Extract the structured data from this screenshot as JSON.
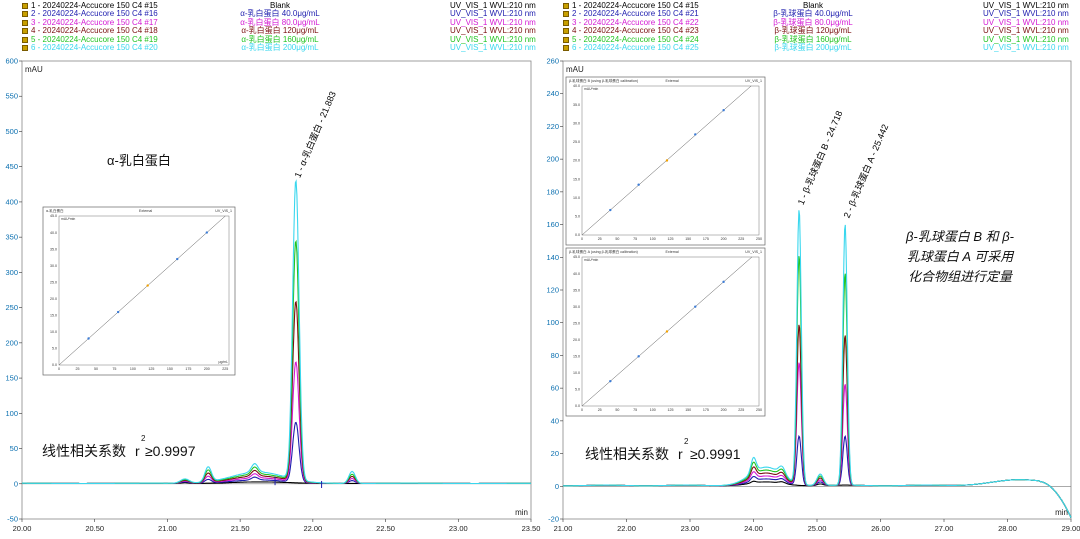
{
  "legend_left": [
    {
      "name": "1 - 20240224-Accucore 150 C4 #15",
      "sample": "Blank",
      "channel": "UV_VIS_1 WVL:210 nm",
      "color": "#000000"
    },
    {
      "name": "2 - 20240224-Accucore 150 C4 #16",
      "sample": "α-乳白蛋白 40.0μg/mL",
      "channel": "UV_VIS_1 WVL:210 nm",
      "color": "#1d1dae"
    },
    {
      "name": "3 - 20240224-Accucore 150 C4 #17",
      "sample": "α-乳白蛋白 80.0μg/mL",
      "channel": "UV_VIS_1 WVL:210 nm",
      "color": "#d41ad4"
    },
    {
      "name": "4 - 20240224-Accucore 150 C4 #18",
      "sample": "α-乳白蛋白 120μg/mL",
      "channel": "UV_VIS_1 WVL:210 nm",
      "color": "#7a1010"
    },
    {
      "name": "5 - 20240224-Accucore 150 C4 #19",
      "sample": "α-乳白蛋白 160μg/mL",
      "channel": "UV_VIS_1 WVL:210 nm",
      "color": "#22c422"
    },
    {
      "name": "6 - 20240224-Accucore 150 C4 #20",
      "sample": "α-乳白蛋白 200μg/mL",
      "channel": "UV_VIS_1 WVL:210 nm",
      "color": "#3ad7ee"
    }
  ],
  "legend_right": [
    {
      "name": "1 - 20240224-Accucore 150 C4 #15",
      "sample": "Blank",
      "channel": "UV_VIS_1 WVL:210 nm",
      "color": "#000000"
    },
    {
      "name": "2 - 20240224-Accucore 150 C4 #21",
      "sample": "β-乳球蛋白 40.0μg/mL",
      "channel": "UV_VIS_1 WVL:210 nm",
      "color": "#1d1dae"
    },
    {
      "name": "3 - 20240224-Accucore 150 C4 #22",
      "sample": "β-乳球蛋白 80.0μg/mL",
      "channel": "UV_VIS_1 WVL:210 nm",
      "color": "#d41ad4"
    },
    {
      "name": "4 - 20240224-Accucore 150 C4 #23",
      "sample": "β-乳球蛋白 120μg/mL",
      "channel": "UV_VIS_1 WVL:210 nm",
      "color": "#7a1010"
    },
    {
      "name": "5 - 20240224-Accucore 150 C4 #24",
      "sample": "β-乳球蛋白 160μg/mL",
      "channel": "UV_VIS_1 WVL:210 nm",
      "color": "#22c422"
    },
    {
      "name": "6 - 20240224-Accucore 150 C4 #25",
      "sample": "β-乳球蛋白 200μg/mL",
      "channel": "UV_VIS_1 WVL:210 nm",
      "color": "#3ad7ee"
    }
  ],
  "chart_data": [
    {
      "type": "line",
      "ylabel": "mAU",
      "xlabel": "min",
      "xlim": [
        20.0,
        23.5
      ],
      "ylim": [
        -50,
        600
      ],
      "xticks": [
        "20.00",
        "20.50",
        "21.00",
        "21.50",
        "22.00",
        "22.50",
        "23.00",
        "23.50"
      ],
      "yticks": [
        "-50",
        "0",
        "50",
        "100",
        "150",
        "200",
        "250",
        "300",
        "350",
        "400",
        "450",
        "500",
        "550",
        "600"
      ],
      "peaks": [
        {
          "label": "1 - α-乳白蛋白 - 21.883",
          "rt": 21.883
        }
      ],
      "peak_heights": [
        0,
        85,
        170,
        255,
        340,
        425
      ],
      "minor_peaks": [
        {
          "rt": 21.28,
          "heights": [
            0,
            5,
            9,
            13,
            17,
            21
          ]
        },
        {
          "rt": 22.27,
          "heights": [
            0,
            4,
            7,
            10,
            13,
            17
          ]
        },
        {
          "rt": 21.6,
          "heights": [
            0,
            4,
            6,
            8,
            10,
            12
          ]
        }
      ],
      "annotations": {
        "compound": "α-乳白蛋白",
        "linearity_prefix": "线性相关系数",
        "r_label": "r",
        "r_exp": "2",
        "r_value": "≥0.9997"
      },
      "inset_calibration": {
        "title": "α-乳白蛋白",
        "mode": "External",
        "channel": "UV_VIS_1",
        "yunit": "mAU*min",
        "xunit": "μg/mL",
        "xticks": [
          "0",
          "25",
          "50",
          "75",
          "100",
          "125",
          "150",
          "175",
          "200",
          "225"
        ],
        "yticks": [
          "0.0",
          "5.0",
          "10.0",
          "15.0",
          "20.0",
          "25.0",
          "30.0",
          "35.0",
          "40.0",
          "45.0"
        ],
        "xlim": [
          0,
          230
        ],
        "ylim": [
          0,
          45
        ],
        "points": [
          [
            40,
            8
          ],
          [
            80,
            16
          ],
          [
            120,
            24
          ],
          [
            160,
            32
          ],
          [
            200,
            40
          ]
        ],
        "highlight_index": 2
      }
    },
    {
      "type": "line",
      "ylabel": "mAU",
      "xlabel": "min",
      "xlim": [
        21.0,
        29.0
      ],
      "ylim": [
        -20,
        260
      ],
      "xticks": [
        "21.00",
        "22.00",
        "23.00",
        "24.00",
        "25.00",
        "26.00",
        "27.00",
        "28.00",
        "29.00"
      ],
      "yticks": [
        "-20",
        "0",
        "20",
        "40",
        "60",
        "80",
        "100",
        "120",
        "140",
        "160",
        "180",
        "200",
        "220",
        "240",
        "260"
      ],
      "peaks": [
        {
          "label": "1 - β-乳球蛋白 B - 24.718",
          "rt": 24.718
        },
        {
          "label": "2 - β-乳球蛋白 A - 25.442",
          "rt": 25.442
        }
      ],
      "peak_heights_B": [
        0,
        30,
        75,
        98,
        140,
        168
      ],
      "peak_heights_A": [
        0,
        30,
        62,
        92,
        130,
        160
      ],
      "annotations": {
        "linearity_prefix": "线性相关系数",
        "r_label": "r",
        "r_exp": "2",
        "r_value": "≥0.9991",
        "note": [
          "β-乳球蛋白 B 和 β-",
          "乳球蛋白 A  可采用",
          "化合物组进行定量"
        ]
      },
      "inset_calibration_top": {
        "title": "β-乳球蛋白 B (using β-乳球蛋白 calibration)",
        "mode": "External",
        "channel": "UV_VIS_1",
        "yunit": "mAU*min",
        "xticks": [
          "0",
          "25",
          "50",
          "75",
          "100",
          "125",
          "150",
          "175",
          "200",
          "225",
          "250"
        ],
        "yticks": [
          "0.0",
          "5.0",
          "10.0",
          "15.0",
          "20.0",
          "25.0",
          "30.0",
          "35.0",
          "40.0"
        ],
        "xlim": [
          0,
          250
        ],
        "ylim": [
          0,
          40
        ],
        "points": [
          [
            40,
            6.7
          ],
          [
            80,
            13.5
          ],
          [
            120,
            20
          ],
          [
            160,
            27
          ],
          [
            200,
            33.5
          ]
        ],
        "highlight_index": 2
      },
      "inset_calibration_bottom": {
        "title": "β-乳球蛋白 A (using β-乳球蛋白 calibration)",
        "mode": "External",
        "channel": "UV_VIS_1",
        "yunit": "mAU*min",
        "xticks": [
          "0",
          "25",
          "50",
          "75",
          "100",
          "125",
          "150",
          "175",
          "200",
          "225",
          "250"
        ],
        "yticks": [
          "0.0",
          "5.0",
          "10.0",
          "15.0",
          "20.0",
          "25.0",
          "30.0",
          "35.0",
          "40.0",
          "45.0"
        ],
        "xlim": [
          0,
          250
        ],
        "ylim": [
          0,
          45
        ],
        "points": [
          [
            40,
            7.5
          ],
          [
            80,
            15
          ],
          [
            120,
            22.5
          ],
          [
            160,
            30
          ],
          [
            200,
            37.5
          ]
        ],
        "highlight_index": 2
      }
    }
  ]
}
